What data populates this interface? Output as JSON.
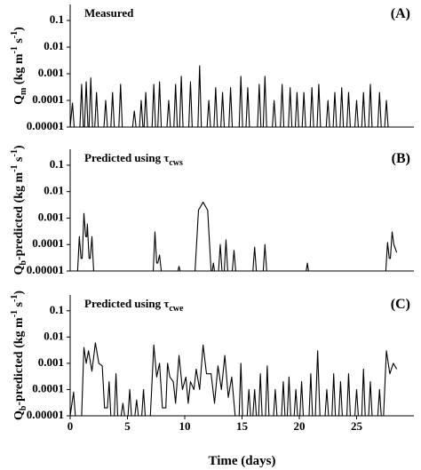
{
  "chart_data": [
    {
      "type": "line",
      "title": [
        "Measured"
      ],
      "panel_label": "(A)",
      "ylabel": [
        "Q",
        "m",
        " (kg m",
        "-1",
        " s",
        "-1",
        ")"
      ],
      "yscale": "log",
      "ylim": [
        1e-05,
        0.4
      ],
      "yticks": [
        0.1,
        0.01,
        0.001,
        0.0001,
        {
          "value": 1e-05,
          "label": "0.00001"
        }
      ],
      "xlim": [
        0,
        30
      ],
      "color": "#000000",
      "x": [
        0,
        0.2,
        0.35,
        0.85,
        1.0,
        1.15,
        1.25,
        1.4,
        1.55,
        1.65,
        1.8,
        1.95,
        2.15,
        2.3,
        2.45,
        2.95,
        3.1,
        3.25,
        3.55,
        3.7,
        3.85,
        4.25,
        4.4,
        4.55,
        5.45,
        5.6,
        5.75,
        6.05,
        6.2,
        6.35,
        6.45,
        6.6,
        6.75,
        7.15,
        7.3,
        7.45,
        7.65,
        7.8,
        7.95,
        8.45,
        8.6,
        8.75,
        9.05,
        9.2,
        9.35,
        9.55,
        9.7,
        9.85,
        10.35,
        10.5,
        10.65,
        11.15,
        11.3,
        11.45,
        11.95,
        12.1,
        12.25,
        12.55,
        12.7,
        12.85,
        13.15,
        13.3,
        13.45,
        13.85,
        14.0,
        14.15,
        14.75,
        14.9,
        15.05,
        15.35,
        15.5,
        15.65,
        16.35,
        16.5,
        16.65,
        16.85,
        17.0,
        17.15,
        17.65,
        17.8,
        17.95,
        18.35,
        18.5,
        18.65,
        19.05,
        19.2,
        19.35,
        19.65,
        19.8,
        19.95,
        20.25,
        20.4,
        20.55,
        20.95,
        21.1,
        21.25,
        21.55,
        21.7,
        21.85,
        22.35,
        22.5,
        22.65,
        22.95,
        23.1,
        23.25,
        23.55,
        23.7,
        23.85,
        24.15,
        24.3,
        24.45,
        24.85,
        25.0,
        25.15,
        25.45,
        25.6,
        25.75,
        26.05,
        26.2,
        26.35,
        26.85,
        27.0,
        27.15,
        27.45,
        27.6,
        27.75,
        28.5
      ],
      "values": [
        1e-05,
        8e-05,
        1e-05,
        1e-05,
        0.0004,
        1e-05,
        1e-05,
        0.0005,
        1e-05,
        1e-05,
        0.0007,
        1e-05,
        1e-05,
        0.0002,
        1e-05,
        1e-05,
        0.0001,
        1e-05,
        1e-05,
        0.0002,
        1e-05,
        1e-05,
        0.0004,
        1e-05,
        1e-05,
        4e-05,
        1e-05,
        1e-05,
        0.0001,
        1e-05,
        1e-05,
        0.0002,
        1e-05,
        1e-05,
        0.0004,
        1e-05,
        1e-05,
        0.0005,
        1e-05,
        1e-05,
        0.0001,
        1e-05,
        1e-05,
        0.0004,
        1e-05,
        1e-05,
        0.0008,
        1e-05,
        1e-05,
        0.0005,
        1e-05,
        1e-05,
        0.002,
        1e-05,
        1e-05,
        0.0001,
        1e-05,
        1e-05,
        0.0003,
        1e-05,
        1e-05,
        0.0002,
        1e-05,
        1e-05,
        0.0003,
        1e-05,
        1e-05,
        0.0008,
        1e-05,
        1e-05,
        0.0003,
        1e-05,
        1e-05,
        0.0004,
        1e-05,
        1e-05,
        0.0008,
        1e-05,
        1e-05,
        0.0001,
        1e-05,
        1e-05,
        0.0004,
        1e-05,
        1e-05,
        0.0003,
        1e-05,
        1e-05,
        0.0002,
        1e-05,
        1e-05,
        0.0002,
        1e-05,
        1e-05,
        0.0003,
        1e-05,
        1e-05,
        0.0004,
        1e-05,
        1e-05,
        0.0001,
        1e-05,
        1e-05,
        0.0002,
        1e-05,
        1e-05,
        0.0003,
        1e-05,
        1e-05,
        0.0002,
        1e-05,
        1e-05,
        0.0001,
        1e-05,
        1e-05,
        0.0002,
        1e-05,
        1e-05,
        0.0004,
        1e-05,
        1e-05,
        0.0002,
        1e-05,
        1e-05,
        0.0001,
        1e-05,
        1e-05
      ]
    },
    {
      "type": "line",
      "title": [
        "Predicted using τ",
        "cws"
      ],
      "panel_label": "(B)",
      "ylabel": [
        "Q",
        "b",
        "-predicted (kg m",
        "-1",
        " s",
        "-1",
        ")"
      ],
      "yscale": "log",
      "ylim": [
        1e-05,
        0.4
      ],
      "yticks": [
        0.1,
        0.01,
        0.001,
        0.0001,
        {
          "value": 1e-05,
          "label": "0.00001"
        }
      ],
      "xlim": [
        0,
        30
      ],
      "color": "#000000",
      "x": [
        0,
        0.65,
        0.8,
        0.95,
        1.05,
        1.2,
        1.35,
        1.45,
        1.5,
        1.65,
        1.75,
        1.9,
        2.05,
        7.25,
        7.4,
        7.55,
        7.65,
        7.8,
        7.95,
        9.4,
        9.5,
        9.6,
        10.9,
        11.2,
        11.6,
        12.0,
        12.3,
        12.4,
        12.5,
        12.6,
        12.95,
        13.1,
        13.25,
        13.45,
        13.6,
        13.75,
        14.15,
        14.3,
        14.45,
        15.95,
        16.1,
        16.25,
        16.85,
        17.0,
        17.15,
        20.6,
        20.7,
        20.8,
        27.55,
        27.7,
        27.85,
        27.95,
        28.1,
        28.25,
        28.5
      ],
      "values": [
        1e-05,
        1e-05,
        0.0002,
        3e-05,
        3e-05,
        0.0015,
        0.0002,
        0.0002,
        0.0006,
        3e-05,
        3e-05,
        0.0002,
        1e-05,
        1e-05,
        0.0003,
        2e-05,
        2e-05,
        4e-05,
        1e-05,
        1e-05,
        1.5e-05,
        1e-05,
        1e-05,
        0.002,
        0.004,
        0.002,
        1e-05,
        1e-05,
        2e-05,
        1e-05,
        1e-05,
        0.0001,
        1e-05,
        1e-05,
        0.00015,
        1e-05,
        1e-05,
        6e-05,
        1e-05,
        1e-05,
        8e-05,
        1e-05,
        1e-05,
        0.0001,
        1e-05,
        1e-05,
        2e-05,
        1e-05,
        1e-05,
        0.00012,
        3e-05,
        3e-05,
        0.0003,
        0.0001,
        5e-05
      ]
    },
    {
      "type": "line",
      "title": [
        "Predicted using τ",
        "cwe"
      ],
      "panel_label": "(C)",
      "ylabel": [
        "Q",
        "b",
        "-predicted (kg m",
        "-1",
        " s",
        "-1",
        ")"
      ],
      "yscale": "log",
      "ylim": [
        1e-05,
        0.4
      ],
      "yticks": [
        0.1,
        0.01,
        0.001,
        0.0001,
        {
          "value": 1e-05,
          "label": "0.00001"
        }
      ],
      "xlim": [
        0,
        30
      ],
      "xticks": [
        0,
        5,
        10,
        15,
        20,
        25
      ],
      "xlabel": "Time (days)",
      "color": "#000000",
      "x": [
        0,
        0.3,
        0.45,
        1.0,
        1.2,
        1.4,
        1.6,
        1.9,
        2.2,
        2.5,
        2.8,
        3.0,
        3.25,
        3.4,
        3.55,
        3.85,
        4.0,
        4.15,
        4.45,
        4.6,
        4.75,
        5.05,
        5.2,
        5.35,
        5.65,
        5.8,
        5.95,
        6.25,
        6.4,
        6.55,
        7.0,
        7.3,
        7.55,
        7.8,
        8.05,
        8.35,
        8.5,
        8.7,
        9.0,
        9.2,
        9.5,
        9.8,
        10.1,
        10.3,
        10.5,
        10.8,
        11.0,
        11.3,
        11.6,
        11.9,
        12.3,
        12.6,
        12.9,
        13.2,
        13.5,
        13.8,
        14.1,
        14.4,
        14.75,
        14.9,
        15.05,
        15.45,
        15.6,
        15.75,
        15.95,
        16.1,
        16.25,
        16.45,
        16.6,
        16.75,
        17.05,
        17.2,
        17.35,
        17.75,
        17.9,
        18.05,
        18.45,
        18.6,
        18.75,
        18.95,
        19.1,
        19.25,
        19.55,
        19.7,
        19.85,
        20.05,
        20.2,
        20.35,
        20.85,
        21.0,
        21.15,
        21.4,
        21.6,
        21.8,
        22.25,
        22.4,
        22.55,
        22.85,
        23.0,
        23.15,
        23.45,
        23.6,
        23.75,
        24.15,
        24.3,
        24.45,
        24.85,
        25.0,
        25.15,
        25.45,
        25.6,
        25.75,
        26.05,
        26.2,
        26.35,
        26.85,
        27.0,
        27.15,
        27.35,
        27.6,
        27.9,
        28.2,
        28.5
      ],
      "values": [
        1e-05,
        8e-05,
        1e-05,
        1e-05,
        0.004,
        0.001,
        0.003,
        0.0005,
        0.006,
        0.001,
        0.0008,
        2e-05,
        2e-05,
        0.0002,
        1e-05,
        1e-05,
        0.0004,
        1e-05,
        1e-05,
        3e-05,
        1e-05,
        1e-05,
        0.0001,
        1e-05,
        1e-05,
        4e-05,
        1e-05,
        1e-05,
        0.0001,
        1e-05,
        1e-05,
        0.005,
        0.0003,
        0.001,
        2e-05,
        2e-05,
        0.001,
        0.0003,
        0.0002,
        3e-05,
        0.002,
        0.0001,
        0.0003,
        3e-05,
        0.0002,
        0.0001,
        0.0006,
        0.0001,
        0.005,
        0.0004,
        0.0004,
        3e-05,
        0.0008,
        0.0001,
        0.002,
        5e-05,
        0.0003,
        1e-05,
        1e-05,
        0.001,
        1e-05,
        1e-05,
        0.0001,
        1e-05,
        1e-05,
        0.0001,
        1e-05,
        1e-05,
        0.0004,
        1e-05,
        1e-05,
        0.0008,
        1e-05,
        1e-05,
        0.0001,
        1e-05,
        1e-05,
        0.0002,
        1e-05,
        1e-05,
        0.0003,
        1e-05,
        1e-05,
        0.0001,
        1e-05,
        1e-05,
        0.0002,
        1e-05,
        1e-05,
        0.0004,
        1e-05,
        1e-05,
        0.003,
        1e-05,
        1e-05,
        0.0001,
        1e-05,
        1e-05,
        0.0004,
        1e-05,
        1e-05,
        0.0002,
        1e-05,
        1e-05,
        0.0004,
        1e-05,
        1e-05,
        0.0001,
        1e-05,
        1e-05,
        0.0006,
        1e-05,
        1e-05,
        0.0002,
        1e-05,
        1e-05,
        0.0001,
        1e-05,
        1e-05,
        0.003,
        0.0004,
        0.001,
        0.0006
      ]
    }
  ]
}
